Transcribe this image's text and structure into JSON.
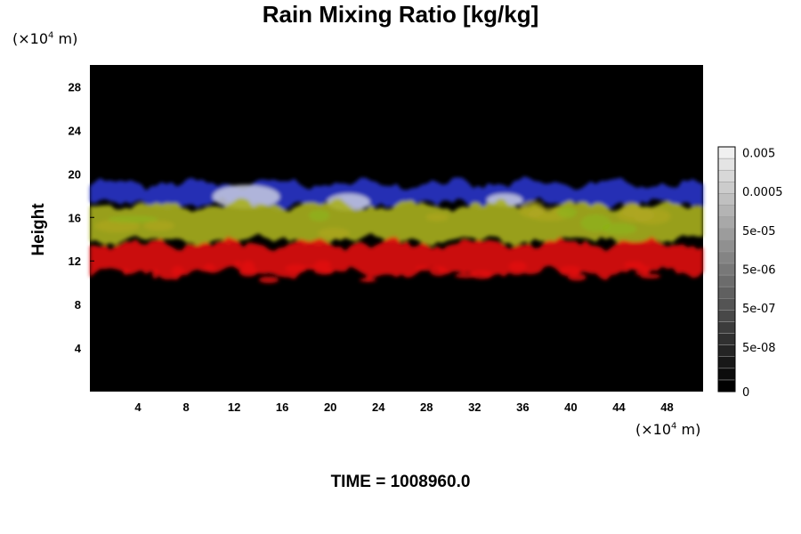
{
  "chart_data": {
    "type": "heatmap",
    "title": "Rain Mixing Ratio [kg/kg]",
    "ylabel": "Height",
    "xlabel": "",
    "x_unit": {
      "prefix": "(×10",
      "exp": "4",
      "suffix": " m)"
    },
    "y_unit": {
      "prefix": "(×10",
      "exp": "4",
      "suffix": " m)"
    },
    "xlim": [
      0,
      51
    ],
    "ylim": [
      0,
      30
    ],
    "x_ticks": [
      4,
      8,
      12,
      16,
      20,
      24,
      28,
      32,
      36,
      40,
      44,
      48
    ],
    "y_ticks": [
      4,
      8,
      12,
      16,
      20,
      24,
      28
    ],
    "x_tick_labels": [
      "4",
      "8",
      "12",
      "16",
      "20",
      "24",
      "28",
      "32",
      "36",
      "40",
      "44",
      "48"
    ],
    "y_tick_labels": [
      "4",
      "8",
      "12",
      "16",
      "20",
      "24",
      "28"
    ],
    "colorbar": {
      "labels": [
        "0",
        "5e-08",
        "5e-07",
        "5e-06",
        "5e-05",
        "0.0005",
        "0.005"
      ],
      "levels": 21
    },
    "layers": [
      {
        "name": "blue",
        "color": "#2a35c8",
        "y_range": [
          16.8,
          19.5
        ]
      },
      {
        "name": "white",
        "color": "#c8cbe0",
        "y_range": [
          16.5,
          19.0
        ]
      },
      {
        "name": "yellow-green",
        "color": "#a8b020",
        "y_range": [
          13.5,
          17.5
        ]
      },
      {
        "name": "red",
        "color": "#e01010",
        "y_range": [
          10.5,
          14.0
        ]
      }
    ]
  },
  "footer": {
    "time_text": "TIME = 1008960.0"
  }
}
